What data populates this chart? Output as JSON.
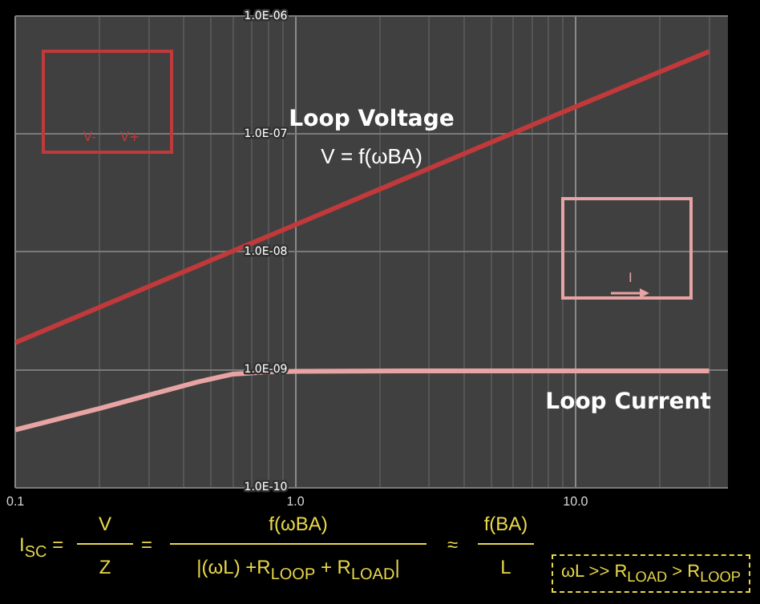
{
  "chart_data": {
    "type": "line",
    "log": "xy",
    "grid": true,
    "marker": "none",
    "line_style": "solid",
    "xlim": [
      0.1,
      35
    ],
    "ylim": [
      1e-10,
      1e-06
    ],
    "xticks": [
      {
        "value": 0.1,
        "label": "0.1"
      },
      {
        "value": 0.2,
        "label": null
      },
      {
        "value": 0.3,
        "label": null
      },
      {
        "value": 0.4,
        "label": null
      },
      {
        "value": 0.5,
        "label": null
      },
      {
        "value": 0.6,
        "label": null
      },
      {
        "value": 0.7,
        "label": null
      },
      {
        "value": 0.8,
        "label": null
      },
      {
        "value": 0.9,
        "label": null
      },
      {
        "value": 1,
        "label": "1.0"
      },
      {
        "value": 2,
        "label": null
      },
      {
        "value": 3,
        "label": null
      },
      {
        "value": 4,
        "label": null
      },
      {
        "value": 5,
        "label": null
      },
      {
        "value": 6,
        "label": null
      },
      {
        "value": 7,
        "label": null
      },
      {
        "value": 8,
        "label": null
      },
      {
        "value": 9,
        "label": null
      },
      {
        "value": 10,
        "label": "10.0"
      },
      {
        "value": 20,
        "label": null
      },
      {
        "value": 30,
        "label": null
      }
    ],
    "yticks": [
      {
        "value": 1e-10,
        "label": "1.0E-10"
      },
      {
        "value": 1e-09,
        "label": "1.0E-09"
      },
      {
        "value": 1e-08,
        "label": "1.0E-08"
      },
      {
        "value": 1e-07,
        "label": "1.0E-07"
      },
      {
        "value": 1e-06,
        "label": "1.0E-06"
      }
    ],
    "series": [
      {
        "name": "Loop Voltage",
        "color": "#c0393b",
        "x": [
          0.1,
          1,
          10,
          30
        ],
        "values": [
          1.7e-09,
          1.7e-08,
          1.7e-07,
          5e-07
        ]
      },
      {
        "name": "Loop Current",
        "color": "#e8a4a4",
        "x": [
          0.1,
          0.2,
          0.3,
          0.45,
          0.6,
          0.8,
          1,
          3,
          10,
          30
        ],
        "values": [
          3.1e-10,
          4.7e-10,
          6.1e-10,
          7.9e-10,
          9.2e-10,
          9.6e-10,
          9.7e-10,
          9.8e-10,
          9.8e-10,
          9.8e-10
        ]
      }
    ],
    "annotations": [
      "V = f(ωBA)",
      "V-",
      "V+",
      "I",
      "I$_{SC}$ =",
      "V",
      "Z",
      "=",
      "f(ωBA)",
      "|(ωL) +R$_{LOOP}$ + R$_{LOAD}$|",
      "≈",
      "f(BA)",
      "L",
      "ωL >> R$_{LOAD}$ > R$_{LOOP}$"
    ]
  }
}
